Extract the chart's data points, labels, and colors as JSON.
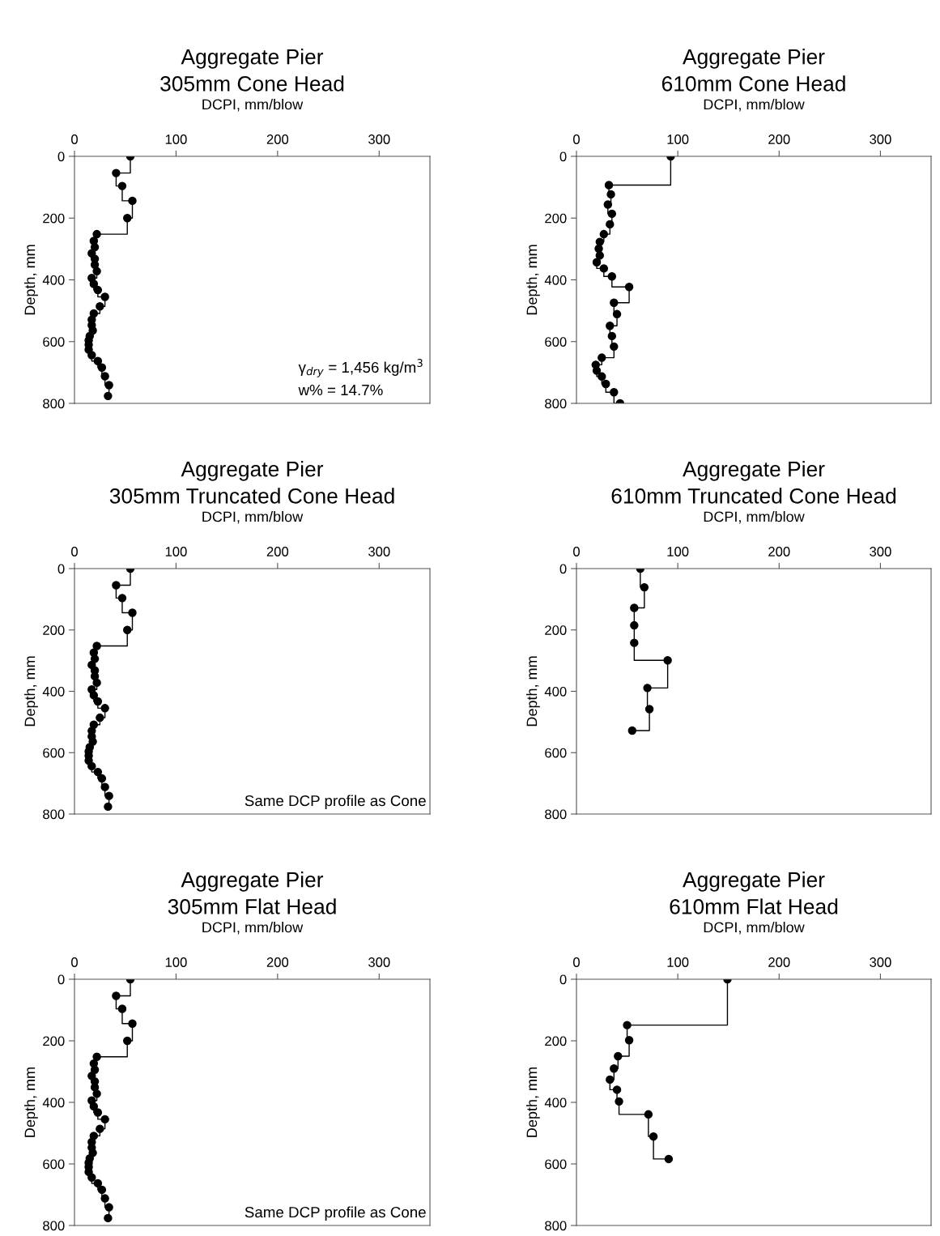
{
  "chart_data": [
    {
      "type": "step",
      "title": "Aggregate Pier\n305mm Cone Head",
      "xlabel": "DCPI, mm/blow",
      "ylabel": "Depth, mm",
      "xlim": [
        0,
        350
      ],
      "xticks": [
        0,
        100,
        200,
        300
      ],
      "ylim": [
        800,
        0
      ],
      "yticks": [
        0,
        200,
        400,
        600,
        800
      ],
      "marker": "circle",
      "line_style": "solid",
      "grid": false,
      "series": [
        {
          "color": "#000000",
          "x": [
            55,
            41,
            47,
            57,
            52,
            22,
            19,
            20,
            17,
            20,
            20,
            22,
            17,
            19,
            23,
            30,
            25,
            19,
            17,
            17,
            18,
            15,
            14,
            14,
            14,
            17,
            23,
            27,
            30,
            34,
            33
          ],
          "values": [
            0,
            54,
            96,
            144,
            200,
            252,
            274,
            294,
            314,
            332,
            351,
            372,
            394,
            413,
            433,
            455,
            486,
            509,
            529,
            547,
            564,
            582,
            596,
            610,
            626,
            644,
            663,
            684,
            712,
            741,
            776
          ]
        }
      ],
      "annotations": [
        "γ$_{dry}$ = 1,456 kg/m$^{3}$",
        "w% = 14.7%"
      ]
    },
    {
      "type": "step",
      "title": "Aggregate Pier\n610mm Cone Head",
      "xlabel": "DCPI, mm/blow",
      "ylabel": "Depth, mm",
      "xlim": [
        0,
        350
      ],
      "xticks": [
        0,
        100,
        200,
        300
      ],
      "ylim": [
        800,
        0
      ],
      "yticks": [
        0,
        200,
        400,
        600,
        800
      ],
      "marker": "circle",
      "line_style": "solid",
      "grid": false,
      "series": [
        {
          "color": "#000000",
          "x": [
            93,
            32,
            34,
            31,
            35,
            33,
            27,
            23,
            22,
            23,
            20,
            27,
            35,
            52,
            37,
            40,
            33,
            35,
            37,
            25,
            19,
            20,
            25,
            29,
            37,
            43
          ],
          "values": [
            0,
            93,
            123,
            156,
            186,
            220,
            252,
            277,
            299,
            321,
            343,
            363,
            389,
            423,
            474,
            511,
            549,
            582,
            616,
            652,
            675,
            694,
            713,
            737,
            764,
            800
          ]
        }
      ]
    },
    {
      "type": "step",
      "title": "Aggregate Pier\n305mm Truncated Cone Head",
      "xlabel": "DCPI, mm/blow",
      "ylabel": "Depth, mm",
      "xlim": [
        0,
        350
      ],
      "xticks": [
        0,
        100,
        200,
        300
      ],
      "ylim": [
        800,
        0
      ],
      "yticks": [
        0,
        200,
        400,
        600,
        800
      ],
      "marker": "circle",
      "line_style": "solid",
      "grid": false,
      "series": [
        {
          "color": "#000000",
          "x": [
            55,
            41,
            47,
            57,
            52,
            22,
            19,
            20,
            17,
            20,
            20,
            22,
            17,
            19,
            23,
            30,
            25,
            19,
            17,
            17,
            18,
            15,
            14,
            14,
            14,
            17,
            23,
            27,
            30,
            34,
            33
          ],
          "values": [
            0,
            54,
            96,
            144,
            200,
            252,
            274,
            294,
            314,
            332,
            351,
            372,
            394,
            413,
            433,
            455,
            486,
            509,
            529,
            547,
            564,
            582,
            596,
            610,
            626,
            644,
            663,
            684,
            712,
            741,
            776
          ]
        }
      ],
      "annotations": [
        "Same DCP profile as Cone"
      ]
    },
    {
      "type": "step",
      "title": "Aggregate Pier\n610mm Truncated Cone Head",
      "xlabel": "DCPI, mm/blow",
      "ylabel": "Depth, mm",
      "xlim": [
        0,
        350
      ],
      "xticks": [
        0,
        100,
        200,
        300
      ],
      "ylim": [
        800,
        0
      ],
      "yticks": [
        0,
        200,
        400,
        600,
        800
      ],
      "marker": "circle",
      "line_style": "solid",
      "grid": false,
      "series": [
        {
          "color": "#000000",
          "x": [
            63,
            67,
            57,
            57,
            57,
            90,
            70,
            72,
            55
          ],
          "values": [
            0,
            61,
            128,
            185,
            242,
            299,
            389,
            458,
            528
          ]
        }
      ]
    },
    {
      "type": "step",
      "title": "Aggregate Pier\n305mm Flat Head",
      "xlabel": "DCPI, mm/blow",
      "ylabel": "Depth, mm",
      "xlim": [
        0,
        350
      ],
      "xticks": [
        0,
        100,
        200,
        300
      ],
      "ylim": [
        800,
        0
      ],
      "yticks": [
        0,
        200,
        400,
        600,
        800
      ],
      "marker": "circle",
      "line_style": "solid",
      "grid": false,
      "series": [
        {
          "color": "#000000",
          "x": [
            55,
            41,
            47,
            57,
            52,
            22,
            19,
            20,
            17,
            20,
            20,
            22,
            17,
            19,
            23,
            30,
            25,
            19,
            17,
            17,
            18,
            15,
            14,
            14,
            14,
            17,
            23,
            27,
            30,
            34,
            33
          ],
          "values": [
            0,
            54,
            96,
            144,
            200,
            252,
            274,
            294,
            314,
            332,
            351,
            372,
            394,
            413,
            433,
            455,
            486,
            509,
            529,
            547,
            564,
            582,
            596,
            610,
            626,
            644,
            663,
            684,
            712,
            741,
            776
          ]
        }
      ],
      "annotations": [
        "Same DCP profile as Cone"
      ]
    },
    {
      "type": "step",
      "title": "Aggregate Pier\n610mm Flat Head",
      "xlabel": "DCPI, mm/blow",
      "ylabel": "Depth, mm",
      "xlim": [
        0,
        350
      ],
      "xticks": [
        0,
        100,
        200,
        300
      ],
      "ylim": [
        800,
        0
      ],
      "yticks": [
        0,
        200,
        400,
        600,
        800
      ],
      "marker": "circle",
      "line_style": "solid",
      "grid": false,
      "series": [
        {
          "color": "#000000",
          "x": [
            149,
            50,
            52,
            41,
            37,
            33,
            40,
            42,
            71,
            76,
            91
          ],
          "values": [
            0,
            149,
            198,
            250,
            290,
            326,
            359,
            397,
            439,
            511,
            584
          ]
        }
      ]
    }
  ]
}
